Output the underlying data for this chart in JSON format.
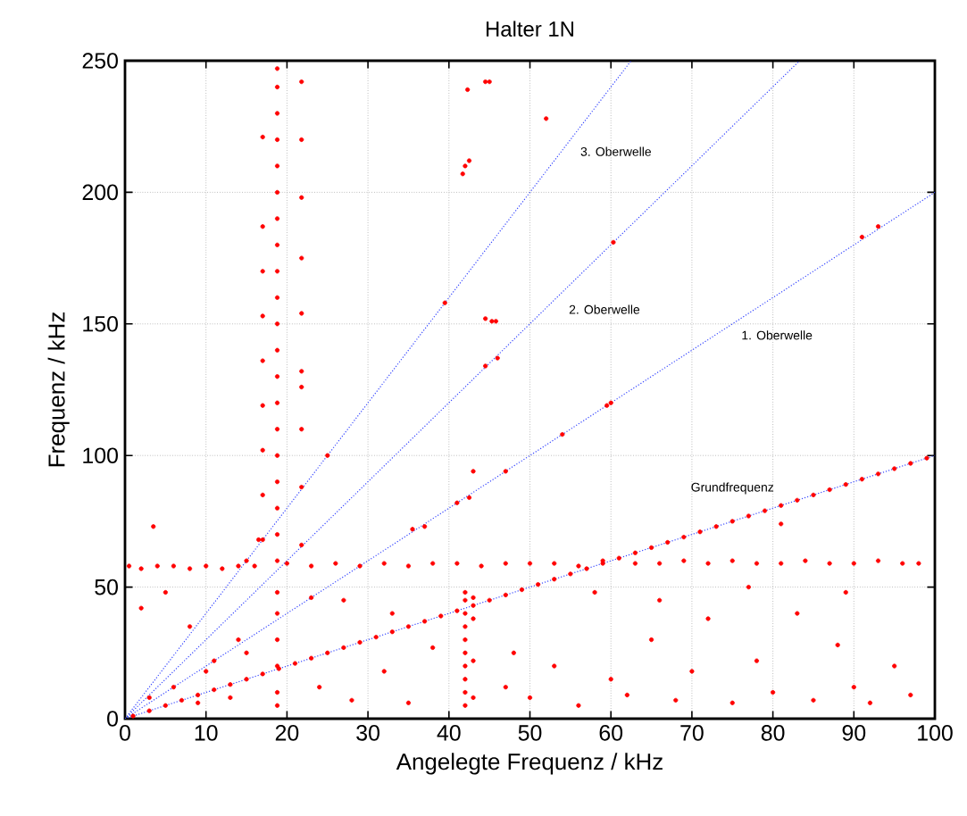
{
  "chart_data": {
    "type": "scatter",
    "title": "Halter 1N",
    "xlabel": "Angelegte Frequenz / kHz",
    "ylabel": "Frequenz / kHz",
    "xlim": [
      0,
      100
    ],
    "ylim": [
      0,
      250
    ],
    "xticks": [
      0,
      10,
      20,
      30,
      40,
      50,
      60,
      70,
      80,
      90,
      100
    ],
    "yticks": [
      0,
      50,
      100,
      150,
      200,
      250
    ],
    "grid": true,
    "marker": "circle",
    "series": [
      {
        "color": "#ff0000",
        "x": [
          1,
          3,
          5,
          7,
          9,
          11,
          13,
          15,
          17,
          19,
          21,
          23,
          25,
          27,
          29,
          31,
          33,
          35,
          37,
          39,
          41,
          43,
          45,
          47,
          49,
          51,
          53,
          55,
          57,
          59,
          61,
          63,
          65,
          67,
          69,
          71,
          73,
          75,
          77,
          79,
          81,
          83,
          85,
          87,
          89,
          91,
          93,
          95,
          97,
          99
        ],
        "values": [
          1,
          3,
          5,
          7,
          9,
          11,
          13,
          15,
          17,
          19,
          21,
          23,
          25,
          27,
          29,
          31,
          33,
          35,
          37,
          39,
          41,
          43,
          45,
          47,
          49,
          51,
          53,
          55,
          57,
          59,
          61,
          63,
          65,
          67,
          69,
          71,
          73,
          75,
          77,
          79,
          81,
          83,
          85,
          87,
          89,
          91,
          93,
          95,
          97,
          99
        ]
      },
      {
        "color": "#ff0000",
        "x": [
          0.5,
          2,
          4,
          6,
          8,
          10,
          12,
          14,
          16,
          20,
          23,
          26,
          29,
          32,
          35,
          38,
          41,
          44,
          47,
          50,
          53,
          56,
          59,
          63,
          66,
          69,
          72,
          75,
          78,
          81,
          84,
          87,
          90,
          93,
          96,
          98
        ],
        "values": [
          58,
          57,
          58,
          58,
          57,
          58,
          57,
          58,
          58,
          59,
          58,
          59,
          58,
          59,
          58,
          59,
          59,
          58,
          59,
          59,
          59,
          58,
          60,
          59,
          59,
          60,
          59,
          60,
          59,
          59,
          60,
          59,
          59,
          60,
          59,
          59
        ]
      },
      {
        "color": "#ff0000",
        "x": [
          18.8,
          18.8,
          18.8,
          18.8,
          18.8,
          18.8,
          18.8,
          18.8,
          18.8,
          18.8,
          18.8,
          18.8,
          18.8,
          18.8,
          18.8,
          18.8,
          18.8,
          18.8,
          18.8,
          18.8,
          18.8,
          18.8,
          18.8,
          18.8,
          18.8,
          18.8,
          21.8,
          21.8,
          21.8,
          21.8,
          21.8,
          21.8,
          21.8,
          21.8,
          21.8,
          21.8,
          17,
          17,
          17,
          17,
          17,
          17,
          17,
          17,
          17,
          42,
          42,
          42,
          42,
          42,
          42,
          42,
          42,
          42,
          42,
          43,
          43,
          43,
          43
        ],
        "values": [
          247,
          240,
          230,
          220,
          210,
          200,
          190,
          180,
          170,
          160,
          150,
          140,
          130,
          120,
          110,
          100,
          90,
          80,
          70,
          60,
          48,
          40,
          30,
          20,
          10,
          5,
          242,
          220,
          198,
          175,
          154,
          132,
          126,
          110,
          88,
          66,
          221,
          187,
          170,
          153,
          136,
          119,
          102,
          85,
          68,
          48,
          45,
          40,
          35,
          30,
          25,
          20,
          15,
          10,
          5,
          46,
          38,
          22,
          8
        ]
      },
      {
        "color": "#ff0000",
        "x": [
          44.5,
          45,
          42.3,
          52,
          42.5,
          42,
          41.7,
          44.5,
          45.3,
          45.8,
          39.5,
          60.3,
          91,
          93,
          44.5,
          46,
          60,
          59.5,
          54,
          41,
          42.5,
          43,
          47,
          37,
          35.5,
          3.5,
          25,
          16.5,
          23,
          15,
          2,
          5,
          8,
          10,
          13,
          15,
          24,
          28,
          32,
          35,
          38,
          47,
          50,
          53,
          56,
          60,
          62,
          65,
          68,
          70,
          72,
          75,
          78,
          80,
          83,
          85,
          88,
          90,
          92,
          95,
          97,
          3,
          6,
          9,
          11,
          14,
          27,
          33,
          48,
          58,
          66,
          89,
          77,
          81
        ],
        "values": [
          242,
          242,
          239,
          228,
          212,
          210,
          207,
          152,
          151,
          151,
          158,
          181,
          183,
          187,
          134,
          137,
          120,
          119,
          108,
          82,
          84,
          94,
          94,
          73,
          72,
          73,
          100,
          68,
          46,
          60,
          42,
          48,
          35,
          18,
          8,
          25,
          12,
          7,
          18,
          6,
          27,
          12,
          8,
          20,
          5,
          15,
          9,
          30,
          7,
          18,
          38,
          6,
          22,
          10,
          40,
          7,
          28,
          12,
          6,
          20,
          9,
          8,
          12,
          6,
          22,
          30,
          45,
          40,
          25,
          48,
          45,
          48,
          50,
          74
        ]
      },
      {
        "type": "line",
        "name": "Grundfrequenz",
        "color": "#3344ff",
        "line_style": "dotted",
        "marker": "none",
        "x": [
          0,
          100
        ],
        "values": [
          0,
          100
        ]
      },
      {
        "type": "line",
        "name": "1. Oberwelle",
        "color": "#3344ff",
        "line_style": "dotted",
        "marker": "none",
        "x": [
          0,
          100
        ],
        "values": [
          0,
          200
        ]
      },
      {
        "type": "line",
        "name": "2. Oberwelle",
        "color": "#3344ff",
        "line_style": "dotted",
        "marker": "none",
        "x": [
          0,
          83.3
        ],
        "values": [
          0,
          250
        ]
      },
      {
        "type": "line",
        "name": "3. Oberwelle",
        "color": "#3344ff",
        "line_style": "dotted",
        "marker": "none",
        "x": [
          0,
          62.5
        ],
        "values": [
          0,
          250
        ]
      }
    ]
  }
}
